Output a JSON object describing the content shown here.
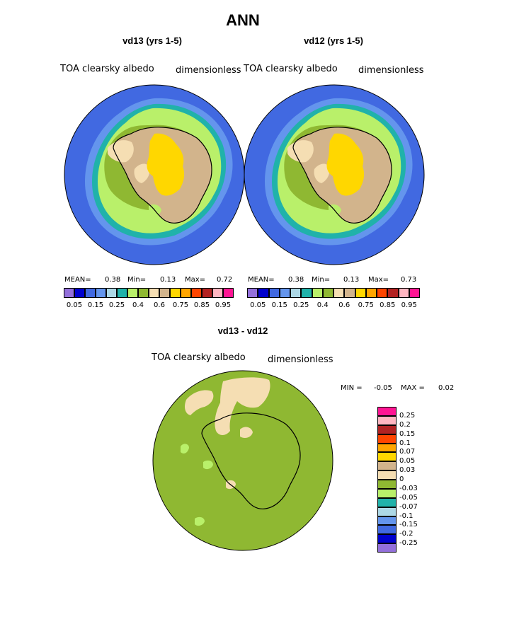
{
  "figure": {
    "title": "ANN"
  },
  "panels": [
    {
      "title": "vd13 (yrs 1-5)",
      "variable": "TOA clearsky albedo",
      "units": "dimensionless",
      "stats": {
        "mean_label": "MEAN=",
        "mean": "0.38",
        "min_label": "Min=",
        "min": "0.13",
        "max_label": "Max=",
        "max": "0.72"
      }
    },
    {
      "title": "vd12 (yrs 1-5)",
      "variable": "TOA clearsky albedo",
      "units": "dimensionless",
      "stats": {
        "mean_label": "MEAN=",
        "mean": "0.38",
        "min_label": "Min=",
        "min": "0.13",
        "max_label": "Max=",
        "max": "0.73"
      }
    }
  ],
  "diff_panel": {
    "title": "vd13 - vd12",
    "variable": "TOA clearsky albedo",
    "units": "dimensionless",
    "stats": {
      "min_label": "MIN =",
      "min": "-0.05",
      "max_label": "MAX =",
      "max": "0.02"
    }
  },
  "colorbar_levels": {
    "colors": [
      "#9370db",
      "#0000cd",
      "#4169e1",
      "#6495ed",
      "#add8e6",
      "#20b2aa",
      "#b9f06a",
      "#8fb832",
      "#f5deb3",
      "#d2b48c",
      "#ffd700",
      "#ffa500",
      "#ff4500",
      "#b22222",
      "#ffb6c1",
      "#ff1493"
    ],
    "labels": [
      "0.05",
      "0.15",
      "0.25",
      "0.4",
      "0.6",
      "0.75",
      "0.85",
      "0.95"
    ]
  },
  "diff_levels": {
    "colors": [
      "#9370db",
      "#0000cd",
      "#4169e1",
      "#6495ed",
      "#add8e6",
      "#20b2aa",
      "#b9f06a",
      "#8fb832",
      "#f5deb3",
      "#d2b48c",
      "#ffd700",
      "#ffa500",
      "#ff4500",
      "#b22222",
      "#ffb6c1",
      "#ff1493"
    ],
    "labels": [
      "-0.25",
      "-0.2",
      "-0.15",
      "-0.1",
      "-0.07",
      "-0.05",
      "-0.03",
      "0",
      "0.03",
      "0.05",
      "0.07",
      "0.1",
      "0.15",
      "0.2",
      "0.25"
    ]
  }
}
